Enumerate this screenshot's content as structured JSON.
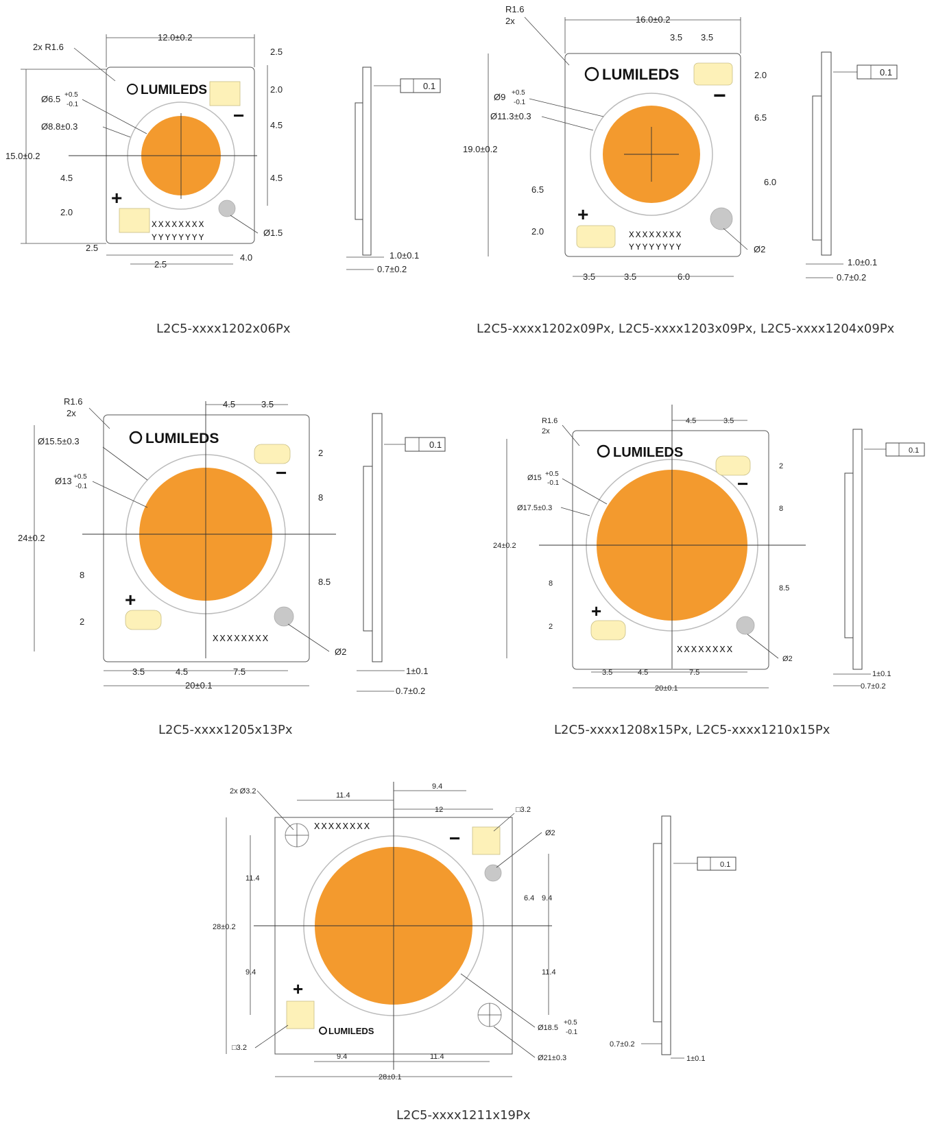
{
  "drawings": [
    {
      "caption": "L2C5-xxxx1202x06Px",
      "board": "12.0±0.2",
      "height": "15.0±0.2",
      "corner": "2x R1.6",
      "les_dia_label": "Ø6.5",
      "les_dia_tol_plus": "+0.5",
      "les_dia_tol_minus": "-0.1",
      "ring_dia": "Ø8.8±0.3",
      "hole": "Ø1.5",
      "code_x": "XXXXXXXX",
      "code_y": "YYYYYYYY",
      "dims": [
        "2.5",
        "2.0",
        "4.5",
        "4.5",
        "4.5",
        "2.0",
        "2.5",
        "2.5",
        "4.0"
      ],
      "side_a": "1.0±0.1",
      "side_b": "0.7±0.2",
      "flatness": "0.1"
    },
    {
      "caption": "L2C5-xxxx1202x09Px, L2C5-xxxx1203x09Px, L2C5-xxxx1204x09Px",
      "board": "16.0±0.2",
      "height": "19.0±0.2",
      "corner_a": "R1.6",
      "corner_b": "2x",
      "les_dia_label": "Ø9",
      "les_dia_tol_plus": "+0.5",
      "les_dia_tol_minus": "-0.1",
      "ring_dia": "Ø11.3±0.3",
      "hole": "Ø2",
      "code_x": "XXXXXXXX",
      "code_y": "YYYYYYYY",
      "dims": [
        "3.5",
        "3.5",
        "2.0",
        "6.5",
        "6.0",
        "6.5",
        "2.0",
        "3.5",
        "3.5",
        "6.0"
      ],
      "side_a": "1.0±0.1",
      "side_b": "0.7±0.2",
      "flatness": "0.1"
    },
    {
      "caption": "L2C5-xxxx1205x13Px",
      "board": "20±0.1",
      "height": "24±0.2",
      "corner_a": "R1.6",
      "corner_b": "2x",
      "ring_dia": "Ø15.5±0.3",
      "les_dia_label": "Ø13",
      "les_dia_tol_plus": "+0.5",
      "les_dia_tol_minus": "-0.1",
      "hole": "Ø2",
      "code_x": "XXXXXXXX",
      "dims": [
        "4.5",
        "3.5",
        "2",
        "8",
        "8.5",
        "8",
        "2",
        "3.5",
        "4.5",
        "7.5"
      ],
      "side_a": "1±0.1",
      "side_b": "0.7±0.2",
      "flatness": "0.1"
    },
    {
      "caption": "L2C5-xxxx1208x15Px, L2C5-xxxx1210x15Px",
      "board": "20±0.1",
      "height": "24±0.2",
      "corner_a": "R1.6",
      "corner_b": "2x",
      "les_dia_label": "Ø15",
      "les_dia_tol_plus": "+0.5",
      "les_dia_tol_minus": "-0.1",
      "ring_dia": "Ø17.5±0.3",
      "hole": "Ø2",
      "code_x": "XXXXXXXX",
      "dims": [
        "4.5",
        "3.5",
        "2",
        "8",
        "8.5",
        "8",
        "2",
        "3.5",
        "4.5",
        "7.5"
      ],
      "side_a": "1±0.1",
      "side_b": "0.7±0.2",
      "flatness": "0.1"
    },
    {
      "caption": "L2C5-xxxx1211x19Px",
      "board": "28±0.1",
      "height": "28±0.2",
      "holes": "2x Ø3.2",
      "pad_sq_top": "□3.2",
      "pad_sq_bottom": "□3.2",
      "hole_small": "Ø2",
      "les_dia_label": "Ø18.5",
      "les_dia_tol_plus": "+0.5",
      "les_dia_tol_minus": "-0.1",
      "ring_dia": "Ø21±0.3",
      "code_x": "XXXXXXXX",
      "dims": [
        "11.4",
        "9.4",
        "12",
        "11.4",
        "9.4",
        "6.4",
        "9.4",
        "11.4",
        "9.4",
        "11.4"
      ],
      "side_a": "1±0.1",
      "side_b": "0.7±0.2",
      "flatness": "0.1"
    }
  ],
  "brand": "LUMILEDS",
  "plus": "+",
  "minus": "−",
  "colors": {
    "les": "#f39a2e",
    "pad": "#fdf1b8",
    "hole": "#c8c8c8",
    "ring": "#bbbbbb"
  }
}
